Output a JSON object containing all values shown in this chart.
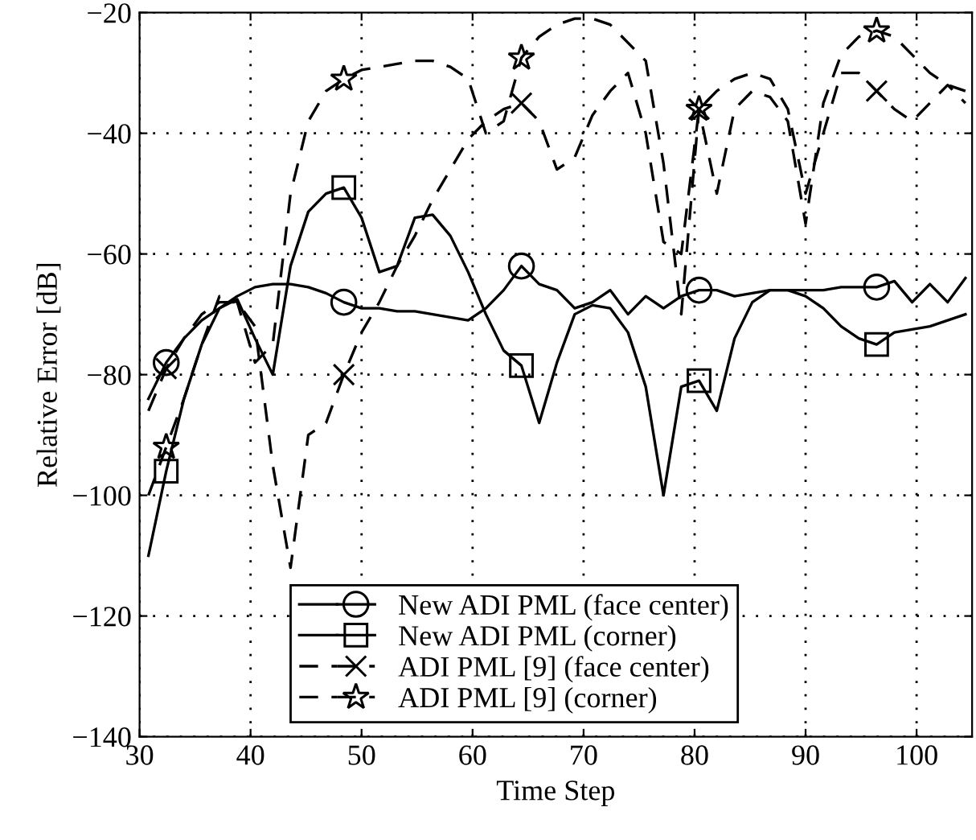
{
  "chart_data": {
    "type": "line",
    "xlabel": "Time Step",
    "ylabel": "Relative Error [dB]",
    "x": [
      30.8,
      32.4,
      34.0,
      35.6,
      37.2,
      38.8,
      40.4,
      42.0,
      43.6,
      45.2,
      46.8,
      48.4,
      50.0,
      51.6,
      53.2,
      54.8,
      56.4,
      58.0,
      59.6,
      61.2,
      62.8,
      64.4,
      66.0,
      67.6,
      69.2,
      70.8,
      72.4,
      74.0,
      75.6,
      77.2,
      78.8,
      80.4,
      82.0,
      83.6,
      85.2,
      86.8,
      88.4,
      90.0,
      91.6,
      93.2,
      94.8,
      96.4,
      98.0,
      99.6,
      101.2,
      102.8,
      104.4
    ],
    "series": [
      {
        "name": "New ADI PML (face center)",
        "color": "#000000",
        "line_style": "solid",
        "values": [
          -84,
          -78,
          -74,
          -71,
          -69,
          -67,
          -65.5,
          -65,
          -65,
          -65.5,
          -66.5,
          -68,
          -69,
          -69,
          -69.5,
          -69.5,
          -70,
          -70.5,
          -71,
          -69,
          -66,
          -62,
          -65,
          -66,
          -69,
          -68,
          -66,
          -70,
          -67,
          -69,
          -67,
          -66,
          -66,
          -67,
          -66.5,
          -66,
          -66,
          -66,
          -66,
          -65.5,
          -65.5,
          -65.5,
          -64.5,
          -68,
          -65,
          -68,
          -64
        ]
      },
      {
        "name": "New ADI PML (corner)",
        "color": "#000000",
        "line_style": "solid",
        "values": [
          -110,
          -96,
          -84,
          -75,
          -69,
          -67.5,
          -74,
          -80,
          -62,
          -53,
          -50,
          -49,
          -54,
          -63,
          -62,
          -54,
          -53.5,
          -57,
          -63,
          -70,
          -76,
          -78.5,
          -88,
          -78,
          -70,
          -68.5,
          -69,
          -73,
          -82,
          -100,
          -82,
          -81,
          -86,
          -74,
          -68,
          -66,
          -66,
          -67,
          -69,
          -72,
          -74,
          -75,
          -73,
          -72.5,
          -72,
          -71,
          -70
        ]
      },
      {
        "name": "ADI PML [9] (face center)",
        "color": "#000000",
        "line_style": "dashed",
        "values": [
          -86,
          -79,
          -74,
          -70,
          -68,
          -68,
          -72,
          -95,
          -112,
          -90,
          -88,
          -80,
          -73,
          -68,
          -62,
          -57,
          -51,
          -46,
          -41,
          -38,
          -36,
          -35,
          -38,
          -46,
          -44,
          -37,
          -33,
          -30,
          -40,
          -58,
          -60,
          -36,
          -33,
          -31,
          -30,
          -31,
          -36,
          -50,
          -40,
          -30,
          -30,
          -33,
          -36,
          -38,
          -35,
          -32,
          -35
        ]
      },
      {
        "name": "ADI PML [9] (corner)",
        "color": "#000000",
        "line_style": "dashed",
        "values": [
          -100,
          -92,
          -84,
          -75,
          -67,
          -68,
          -78,
          -75,
          -50,
          -38,
          -33,
          -31,
          -29.5,
          -29,
          -28.5,
          -28,
          -28,
          -29,
          -31,
          -40,
          -38,
          -27.5,
          -24,
          -22,
          -21,
          -21,
          -22,
          -25,
          -28,
          -45,
          -70,
          -36,
          -50,
          -36,
          -33,
          -34,
          -38,
          -55,
          -35,
          -27,
          -24,
          -23,
          -24,
          -27,
          -30,
          -32,
          -33
        ]
      },
      {
        "color": "#000000",
        "marker": "circle",
        "line_style": "solid",
        "values": [
          null,
          -78,
          null,
          null,
          null,
          null,
          null,
          null,
          null,
          null,
          null,
          -68,
          null,
          null,
          null,
          null,
          null,
          null,
          null,
          null,
          null,
          -62,
          null,
          null,
          null,
          null,
          null,
          null,
          null,
          null,
          null,
          -66,
          null,
          null,
          null,
          null,
          null,
          null,
          null,
          null,
          null,
          -65.5,
          null,
          null,
          null,
          null,
          null
        ]
      },
      {
        "color": "#000000",
        "marker": "square",
        "line_style": "solid",
        "values": [
          null,
          -96,
          null,
          null,
          null,
          null,
          null,
          null,
          null,
          null,
          null,
          -49,
          null,
          null,
          null,
          null,
          null,
          null,
          null,
          null,
          null,
          -78.5,
          null,
          null,
          null,
          null,
          null,
          null,
          null,
          null,
          null,
          -81,
          null,
          null,
          null,
          null,
          null,
          null,
          null,
          null,
          null,
          -75,
          null,
          null,
          null,
          null,
          null
        ]
      },
      {
        "color": "#000000",
        "marker": "cross",
        "line_style": "dashed",
        "values": [
          null,
          -79,
          null,
          null,
          null,
          null,
          null,
          null,
          null,
          null,
          null,
          -80,
          null,
          null,
          null,
          null,
          null,
          null,
          null,
          null,
          null,
          -35,
          null,
          null,
          null,
          null,
          null,
          null,
          null,
          null,
          null,
          -36,
          null,
          null,
          null,
          null,
          null,
          null,
          null,
          null,
          null,
          -33,
          null,
          null,
          null,
          null,
          null
        ]
      },
      {
        "color": "#000000",
        "marker": "star",
        "line_style": "dashed",
        "values": [
          null,
          -92,
          null,
          null,
          null,
          null,
          null,
          null,
          null,
          null,
          null,
          -31,
          null,
          null,
          null,
          null,
          null,
          null,
          null,
          null,
          null,
          -27.5,
          null,
          null,
          null,
          null,
          null,
          null,
          null,
          null,
          null,
          -36,
          null,
          null,
          null,
          null,
          null,
          null,
          null,
          null,
          null,
          -23,
          null,
          null,
          null,
          null,
          null
        ]
      }
    ],
    "xlim": [
      30,
      105
    ],
    "xticks": [
      30,
      40,
      50,
      60,
      70,
      80,
      90,
      100
    ],
    "ylim": [
      -140,
      -20
    ],
    "yticks": [
      -140,
      -120,
      -100,
      -80,
      -60,
      -40,
      -20
    ],
    "grid": true,
    "legend": "bottom"
  }
}
